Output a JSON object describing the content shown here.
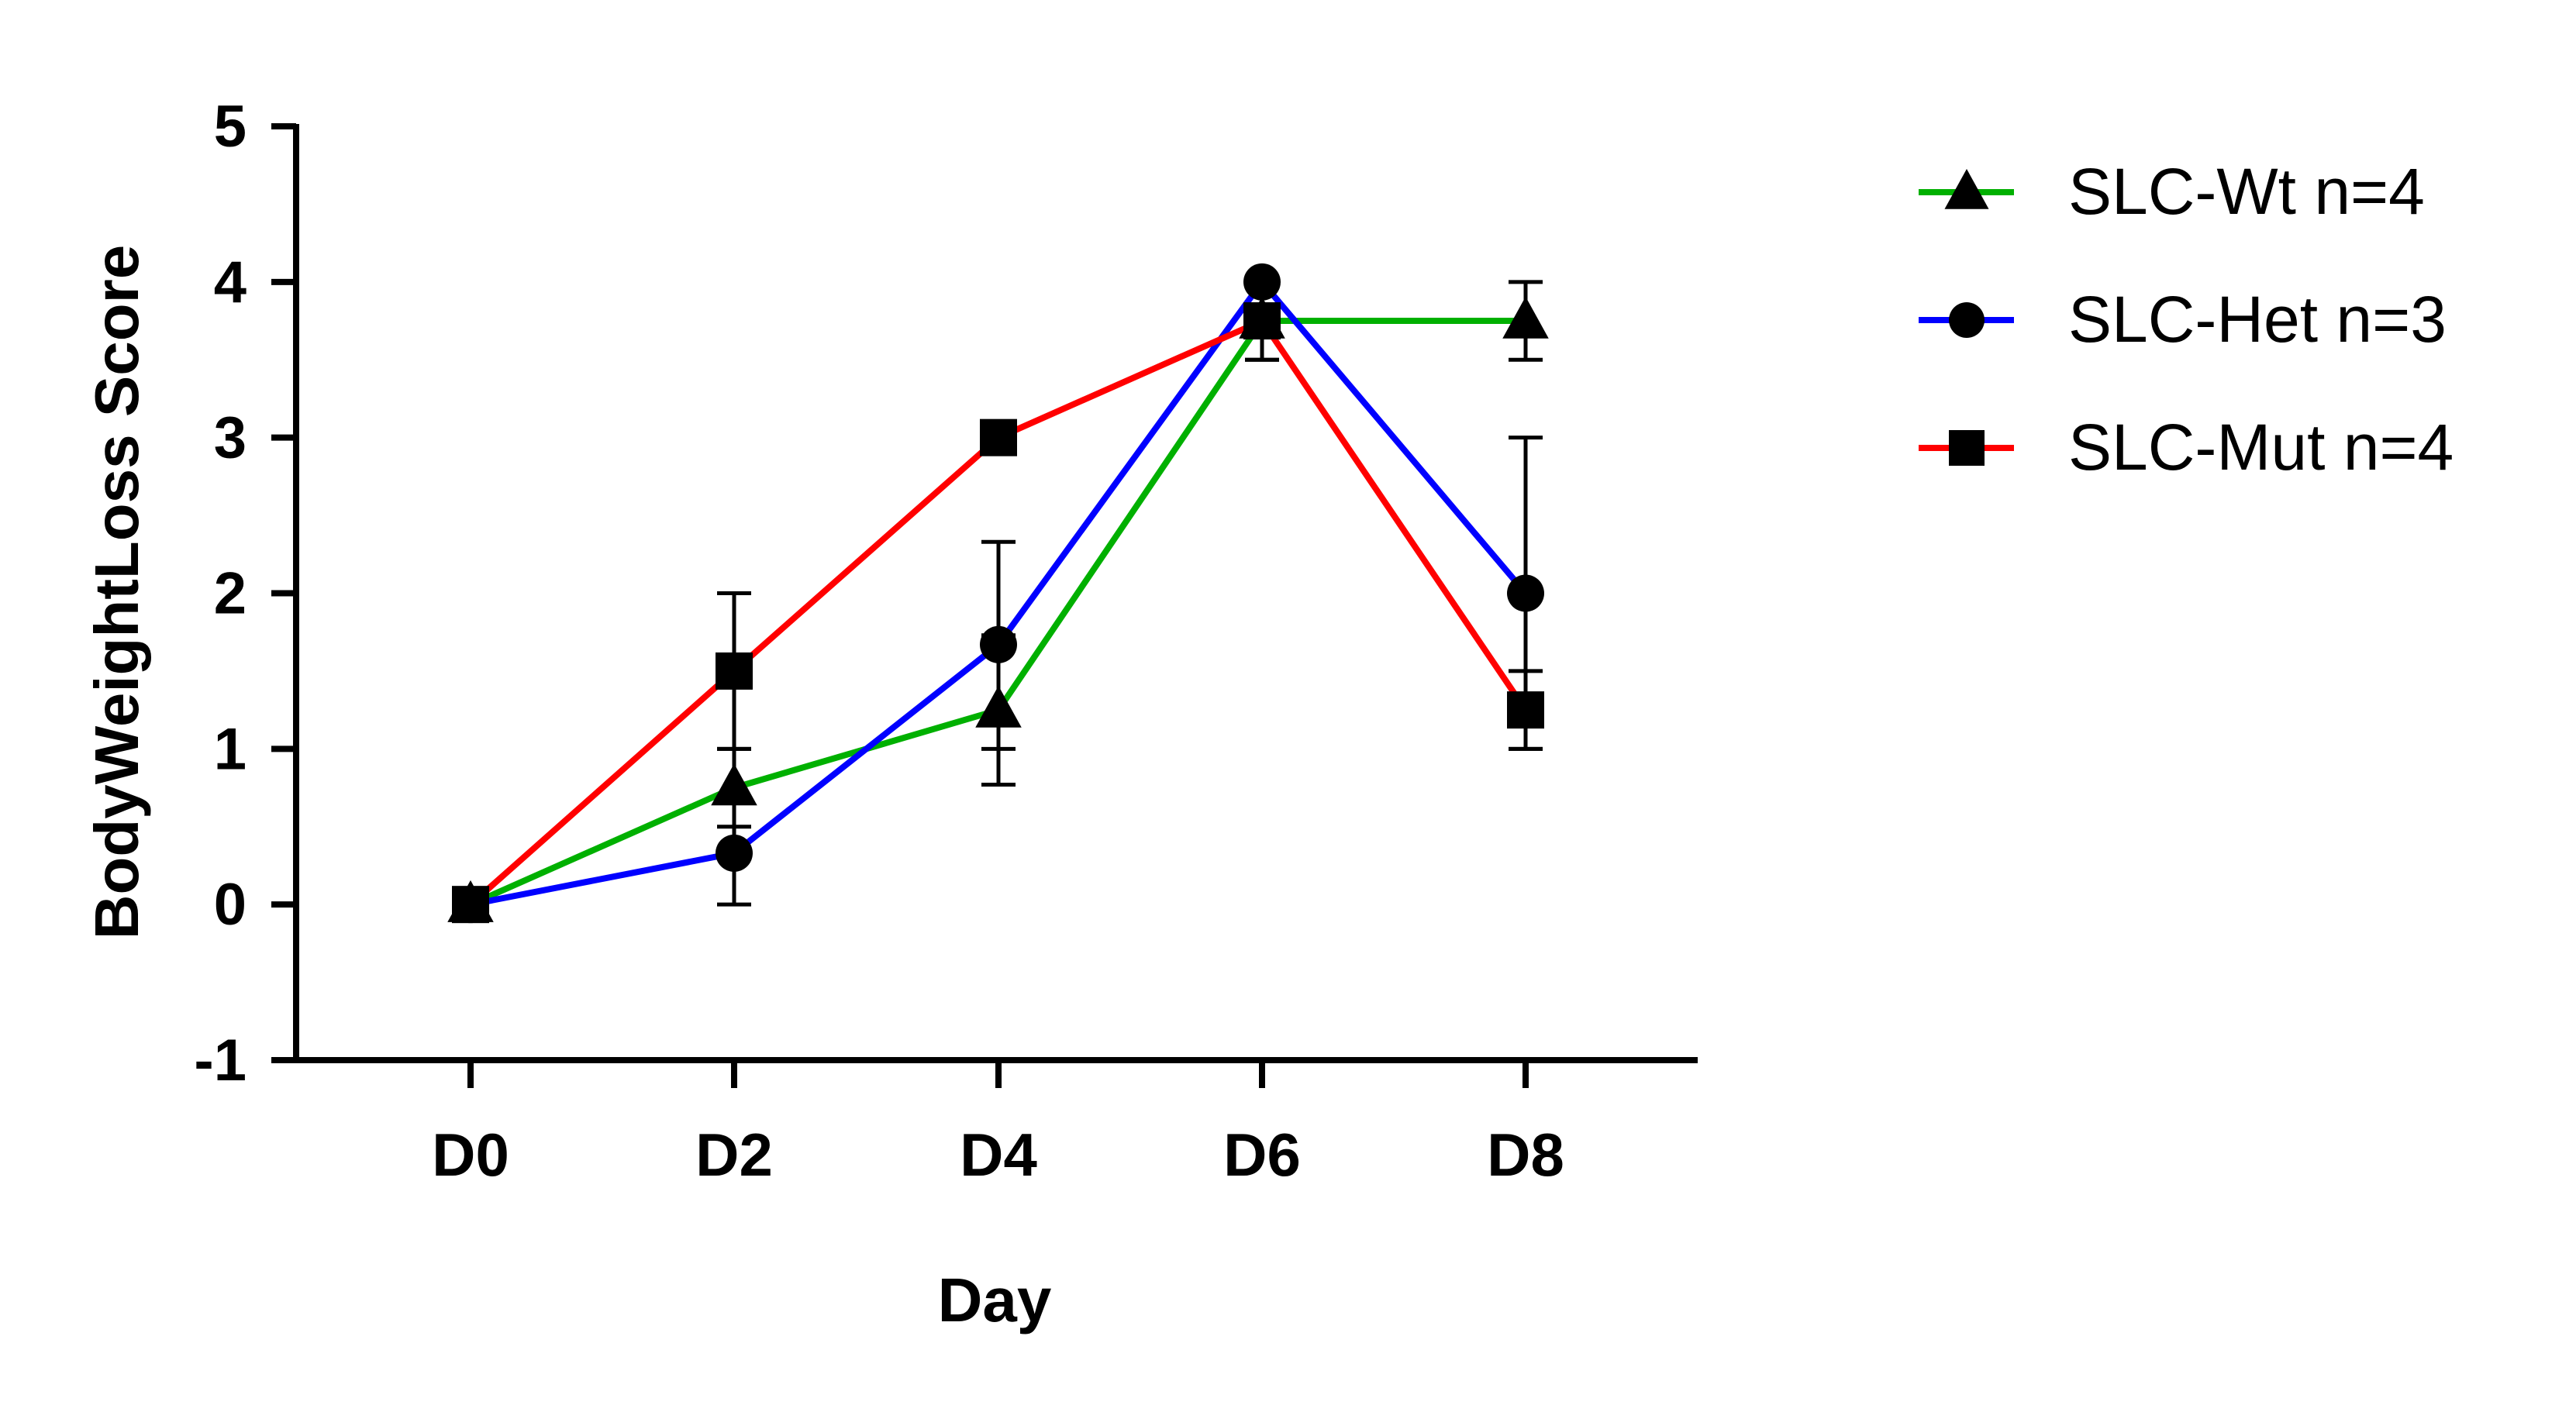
{
  "chart_data": {
    "type": "line",
    "title": "",
    "xlabel": "Day",
    "ylabel": "BodyWeightLoss Score",
    "categories": [
      "D0",
      "D2",
      "D4",
      "D6",
      "D8"
    ],
    "ylim": [
      -1,
      5
    ],
    "yticks": [
      "-1",
      "0",
      "1",
      "2",
      "3",
      "4",
      "5"
    ],
    "grid": false,
    "legend_position": "top-right",
    "series": [
      {
        "name": "SLC-Wt n=4",
        "color": "#00b000",
        "marker": "triangle",
        "values": [
          0,
          0.75,
          1.25,
          3.75,
          3.75
        ],
        "err_lower": [
          0,
          0.5,
          0.77,
          3.5,
          3.5
        ],
        "err_upper": [
          0,
          1.0,
          1.73,
          4.0,
          4.0
        ]
      },
      {
        "name": "SLC-Het n=3",
        "color": "#0000ff",
        "marker": "circle",
        "values": [
          0,
          0.33,
          1.67,
          4.0,
          2.0
        ],
        "err_lower": [
          0,
          0.0,
          1.0,
          4.0,
          1.0
        ],
        "err_upper": [
          0,
          0.67,
          2.33,
          4.0,
          3.0
        ]
      },
      {
        "name": "SLC-Mut n=4",
        "color": "#ff0000",
        "marker": "square",
        "values": [
          0,
          1.5,
          3.0,
          3.75,
          1.25
        ],
        "err_lower": [
          0,
          1.0,
          3.0,
          3.5,
          1.0
        ],
        "err_upper": [
          0,
          2.0,
          3.0,
          4.0,
          1.5
        ]
      }
    ]
  }
}
